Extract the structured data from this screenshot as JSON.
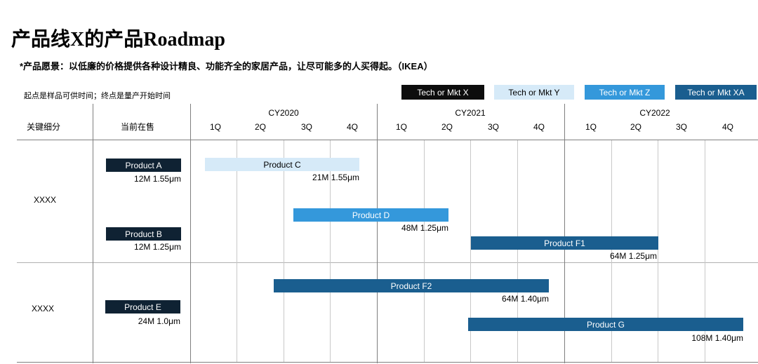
{
  "title": "产品线X的产品Roadmap",
  "vision": "*产品愿景：以低廉的价格提供各种设计精良、功能齐全的家居产品，让尽可能多的人买得起。（IKEA）",
  "note": "起点是样品可供时间；终点是量产开始时间",
  "colors": {
    "x": "#0d0d0d",
    "y": "#d6eaf8",
    "z": "#3498db",
    "xa": "#1a5e8f",
    "dark": "#0f2233"
  },
  "legend": [
    {
      "label": "Tech or Mkt X",
      "key": "x"
    },
    {
      "label": "Tech or Mkt Y",
      "key": "y"
    },
    {
      "label": "Tech or Mkt Z",
      "key": "z"
    },
    {
      "label": "Tech or Mkt XA",
      "key": "xa"
    }
  ],
  "headers": {
    "segment": "关键细分",
    "current": "当前在售",
    "years": [
      "CY2020",
      "CY2021",
      "CY2022"
    ],
    "quarters": [
      "1Q",
      "2Q",
      "3Q",
      "4Q"
    ]
  },
  "segments": [
    "XXXX",
    "XXXX"
  ],
  "current_products": [
    {
      "name": "Product A",
      "spec": "12M 1.55μm"
    },
    {
      "name": "Product B",
      "spec": "12M 1.25μm"
    },
    {
      "name": "Product E",
      "spec": "24M 1.0μm"
    }
  ],
  "roadmap": [
    {
      "name": "Product C",
      "spec": "21M 1.55μm",
      "key": "y",
      "start": "2020-1Q",
      "end": "2020-4Q"
    },
    {
      "name": "Product D",
      "spec": "48M 1.25μm",
      "key": "z",
      "start": "2020-3Q",
      "end": "2021-2Q"
    },
    {
      "name": "Product F1",
      "spec": "64M 1.25μm",
      "key": "xa",
      "start": "2021-3Q",
      "end": "2022-3Q"
    },
    {
      "name": "Product F2",
      "spec": "64M 1.40μm",
      "key": "xa",
      "start": "2020-3Q",
      "end": "2021-4Q"
    },
    {
      "name": "Product G",
      "spec": "108M 1.40μm",
      "key": "xa",
      "start": "2021-3Q",
      "end": "2022-4Q"
    }
  ]
}
